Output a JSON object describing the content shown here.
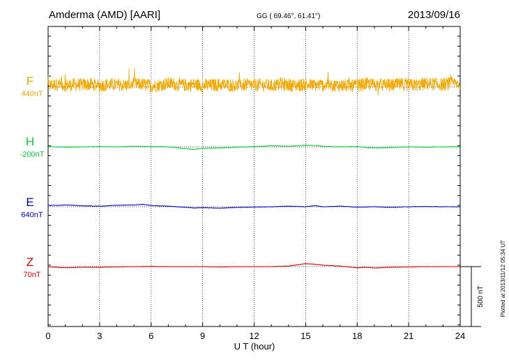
{
  "header": {
    "station": "Amderma (AMD)  [AARI]",
    "coords": "GG ( 69.46°,  61.41°)",
    "date": "2013/09/16"
  },
  "side_note": "Plotted at 2013/11/12 05:34 UT",
  "scale_label": "500 nT",
  "chart_data": {
    "type": "line",
    "xlabel": "U T (hour)",
    "xlim": [
      0,
      24
    ],
    "xticks": [
      "0",
      "3",
      "6",
      "9",
      "12",
      "15",
      "18",
      "21",
      "24"
    ],
    "grid": "vertical dotted every 3 h",
    "scale_bar_nT": 500,
    "series": [
      {
        "name": "F",
        "baseline_label": "440nT",
        "color": "#f5a800",
        "baseline_offset_nT": 0,
        "x": [
          0,
          0.5,
          1,
          1.5,
          2,
          2.5,
          3,
          3.5,
          4,
          4.5,
          5,
          5.5,
          6,
          6.5,
          7,
          7.5,
          8,
          8.5,
          9,
          9.5,
          10,
          10.5,
          11,
          11.5,
          12,
          12.5,
          13,
          13.5,
          14,
          14.5,
          15,
          15.5,
          16,
          16.5,
          17,
          17.5,
          18,
          18.5,
          19,
          19.5,
          20,
          20.5,
          21,
          21.5,
          22,
          22.5,
          23,
          23.5,
          24
        ],
        "y": [
          10,
          25,
          15,
          20,
          18,
          22,
          12,
          20,
          18,
          15,
          25,
          20,
          10,
          18,
          30,
          20,
          15,
          22,
          12,
          15,
          20,
          18,
          12,
          20,
          15,
          18,
          10,
          22,
          18,
          15,
          20,
          15,
          18,
          12,
          15,
          10,
          12,
          25,
          20,
          18,
          15,
          22,
          18,
          15,
          28,
          25,
          20,
          30,
          25
        ],
        "noise_amplitude_nT": 110
      },
      {
        "name": "H",
        "baseline_label": "-200nT",
        "color": "#00cc33",
        "baseline_offset_nT": 0,
        "x": [
          0,
          1,
          2,
          3,
          4,
          5,
          6,
          7,
          8,
          8.5,
          9,
          10,
          11,
          12,
          12.5,
          13,
          14,
          15,
          15.5,
          16,
          17,
          18,
          19,
          20,
          21,
          22,
          23,
          24
        ],
        "y": [
          2,
          -2,
          0,
          2,
          0,
          5,
          2,
          0,
          -15,
          -20,
          -12,
          -8,
          -3,
          2,
          5,
          10,
          5,
          15,
          12,
          5,
          0,
          2,
          -10,
          -5,
          0,
          -3,
          0,
          2
        ]
      },
      {
        "name": "E",
        "baseline_label": "640nT",
        "color": "#0000cc",
        "baseline_offset_nT": 0,
        "x": [
          0,
          1,
          2,
          3,
          4,
          5,
          5.5,
          6,
          7,
          8,
          8.5,
          9,
          10,
          11,
          12,
          13,
          14,
          15,
          15.5,
          16,
          17,
          18,
          19,
          20,
          21,
          22,
          23,
          24
        ],
        "y": [
          10,
          15,
          8,
          5,
          12,
          15,
          20,
          10,
          5,
          -5,
          -10,
          -8,
          -12,
          -5,
          -3,
          0,
          5,
          0,
          10,
          0,
          5,
          -3,
          0,
          -5,
          0,
          2,
          0,
          0
        ]
      },
      {
        "name": "Z",
        "baseline_label": "70nT",
        "color": "#dd0000",
        "baseline_offset_nT": 0,
        "x": [
          0,
          1,
          2,
          3,
          4,
          5,
          6,
          7,
          8,
          9,
          10,
          11,
          12,
          13,
          14,
          14.5,
          15,
          15.5,
          16,
          17,
          18,
          18.5,
          19,
          20,
          21,
          22,
          23,
          24
        ],
        "y": [
          0,
          -10,
          -5,
          -5,
          -2,
          0,
          2,
          0,
          0,
          0,
          -3,
          0,
          0,
          0,
          5,
          15,
          25,
          20,
          12,
          5,
          -10,
          -5,
          -12,
          -5,
          -3,
          0,
          0,
          0
        ]
      }
    ]
  }
}
